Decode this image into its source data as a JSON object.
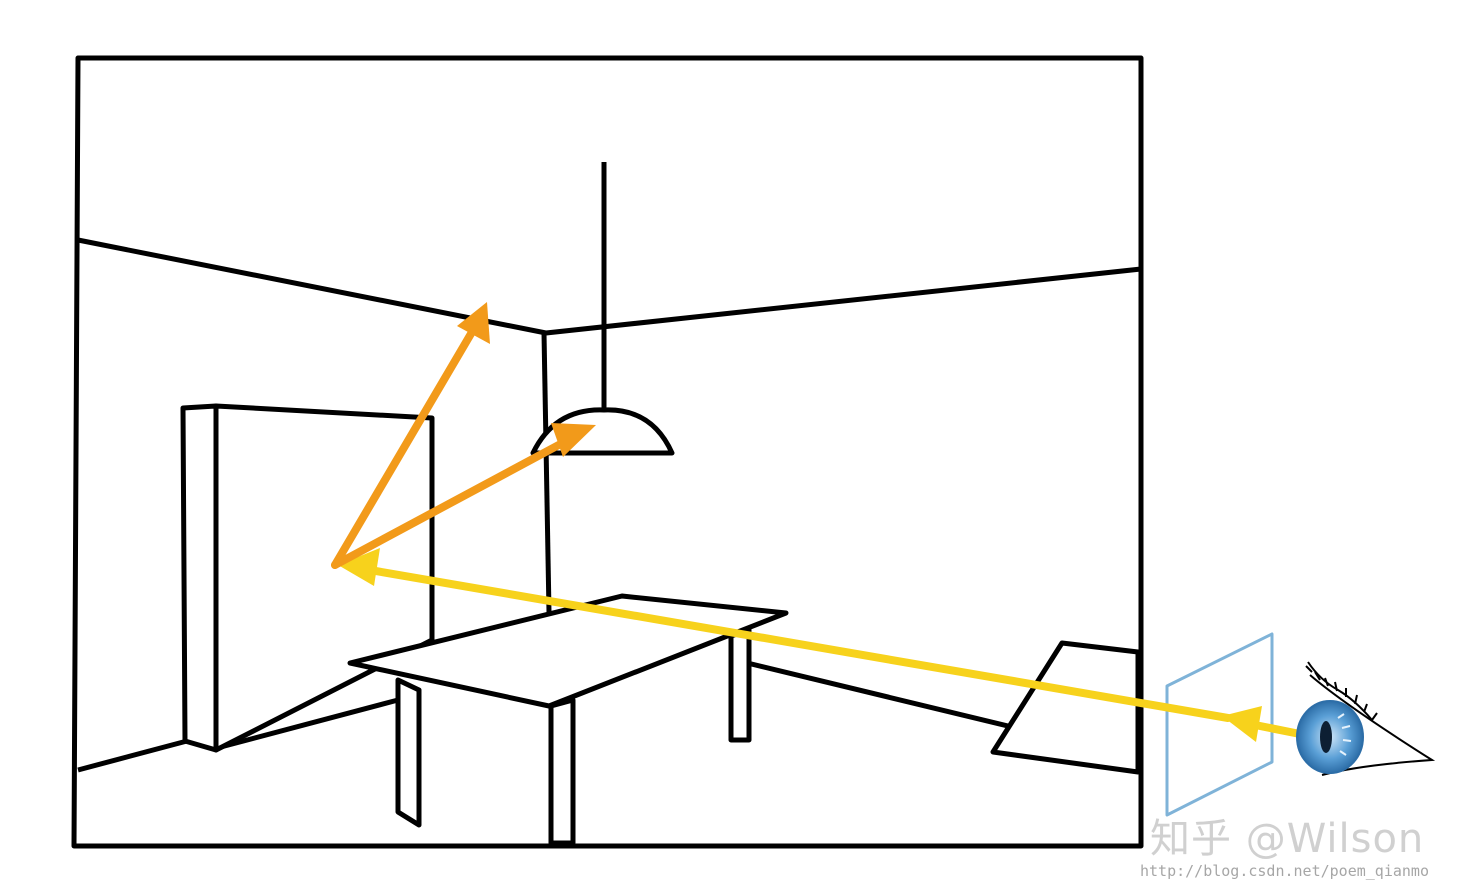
{
  "watermark": {
    "brand": "知乎 @Wilson",
    "url": "http://blog.csdn.net/poem_qianmo"
  },
  "colors": {
    "outline": "#000000",
    "view_ray": "#f7d21c",
    "bounce_ray": "#f29a1a",
    "screen_plane": "#7fb3d8",
    "eye_iris": "#5a9fd6"
  },
  "icons": {
    "eye": "eye-icon"
  }
}
